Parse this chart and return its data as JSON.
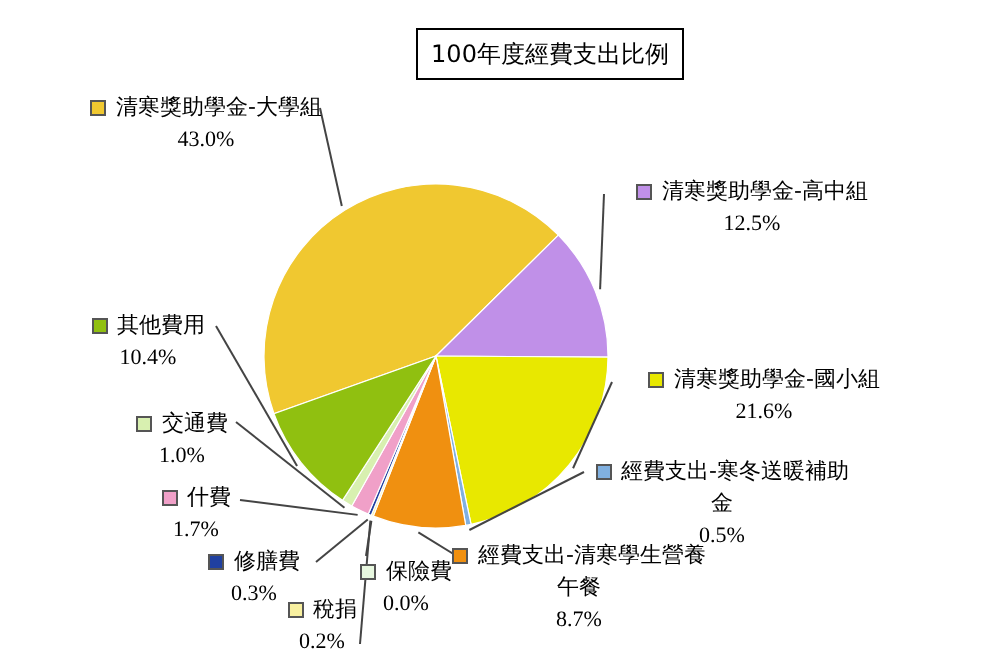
{
  "chart_data": {
    "type": "pie",
    "title": "100年度經費支出比例",
    "categories": [
      "清寒獎助學金-大學組",
      "清寒獎助學金-高中組",
      "清寒獎助學金-國小組",
      "經費支出-寒冬送暖補助金",
      "經費支出-清寒學生營養午餐",
      "保險費",
      "稅捐",
      "修膳費",
      "什費",
      "交通費",
      "其他費用"
    ],
    "values": [
      43.0,
      12.5,
      21.6,
      0.5,
      8.7,
      0.0,
      0.2,
      0.3,
      1.7,
      1.0,
      10.4
    ],
    "value_labels": [
      "43.0%",
      "12.5%",
      "21.6%",
      "0.5%",
      "8.7%",
      "0.0%",
      "0.2%",
      "0.3%",
      "1.7%",
      "1.0%",
      "10.4%"
    ],
    "legend": "right",
    "colors": [
      "#f0c830",
      "#c090e8",
      "#e8e800",
      "#80b0e0",
      "#f09010",
      "#e8f8e0",
      "#f8f0a0",
      "#2040a0",
      "#f0a0c8",
      "#d8f0b0",
      "#90c010"
    ]
  }
}
